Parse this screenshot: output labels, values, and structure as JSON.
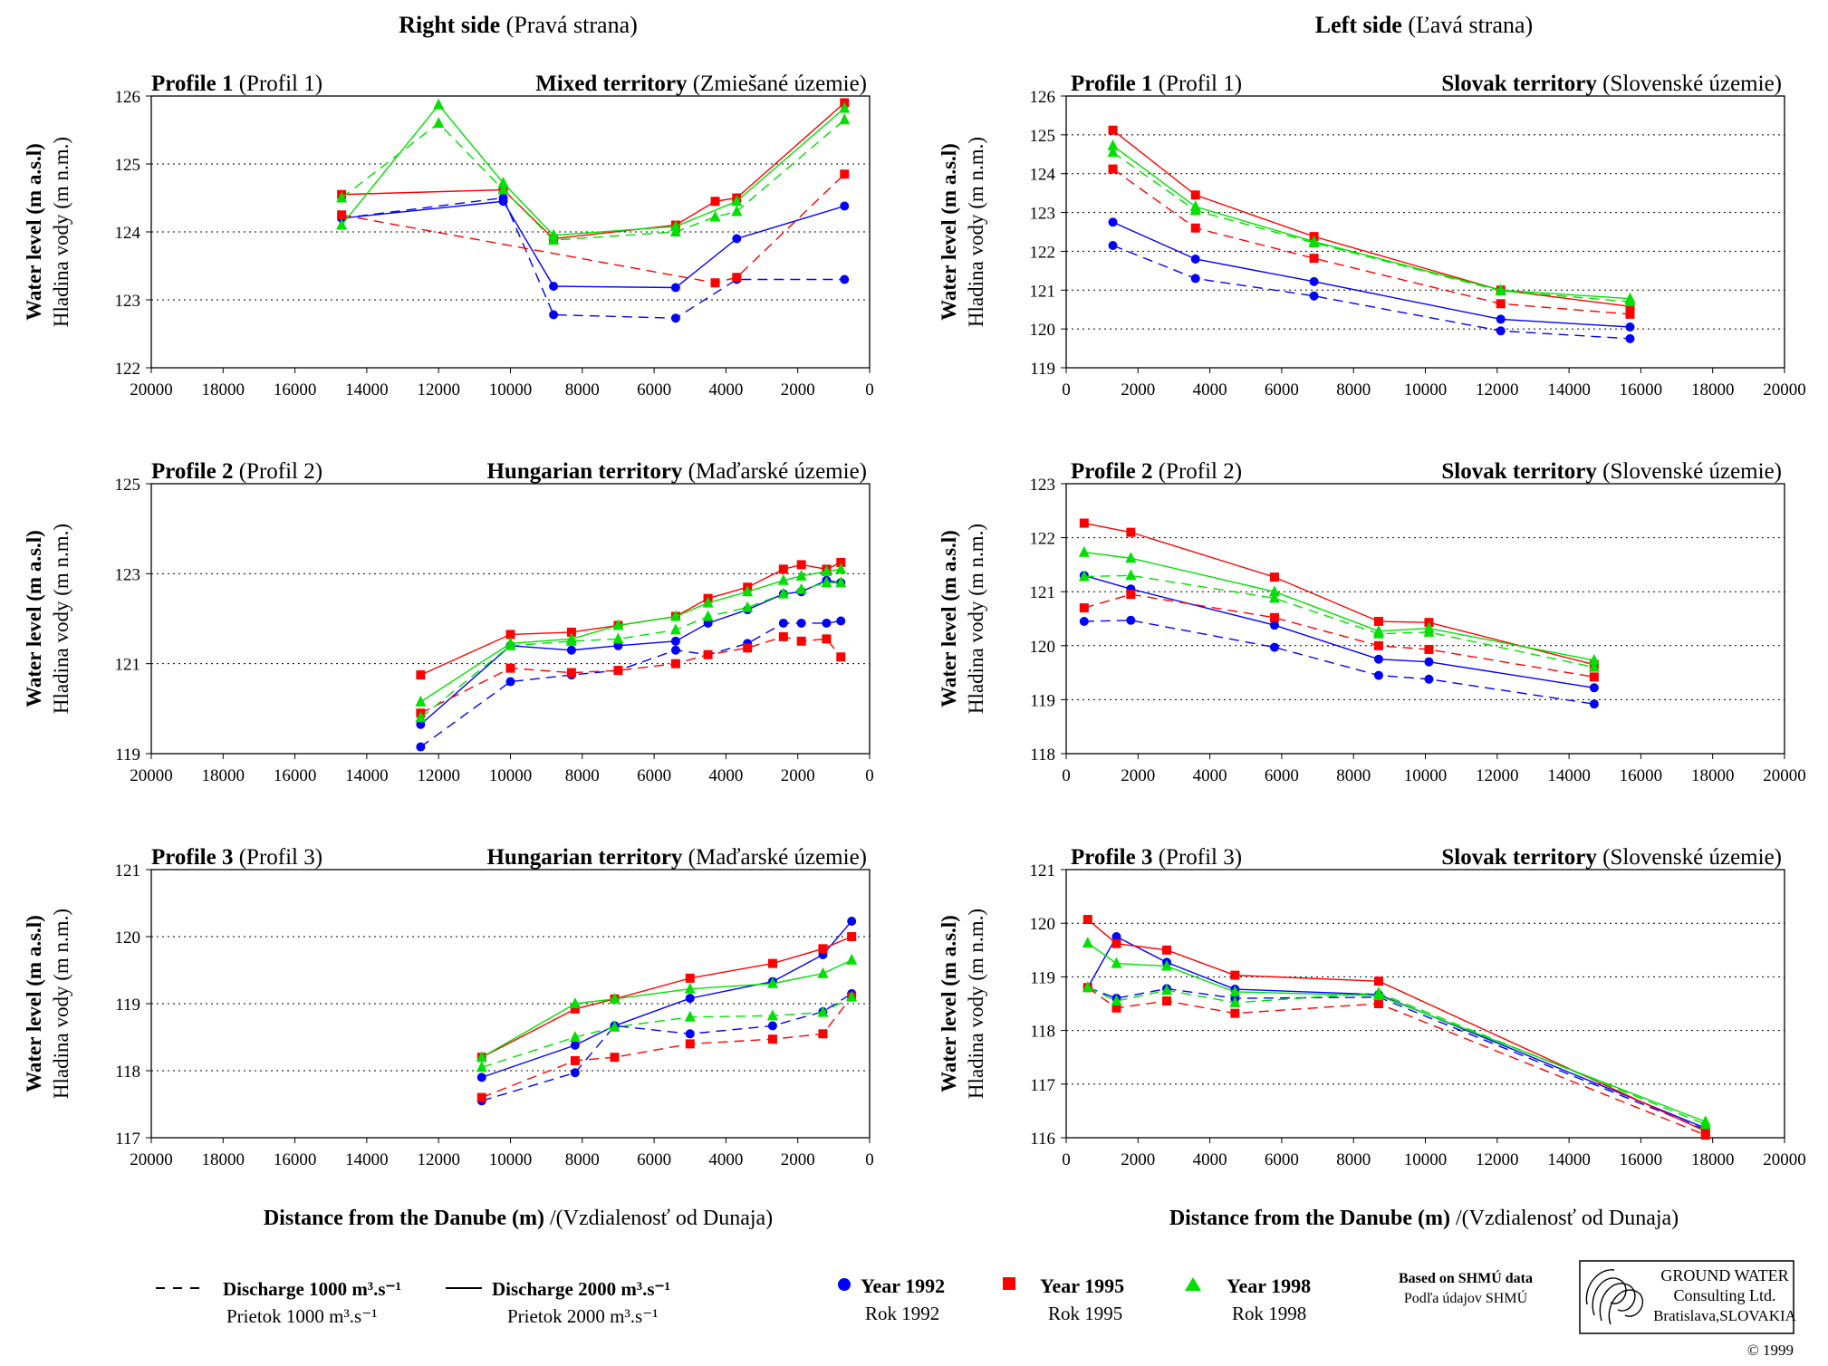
{
  "headings": {
    "right": {
      "bold": "Right side",
      "normal": " (Pravá strana)"
    },
    "left": {
      "bold": "Left side",
      "normal": " (Ľavá strana)"
    }
  },
  "y_label": {
    "en": "Water level (m a.s.l)",
    "sk": "Hladina vody  (m n.m.)"
  },
  "x_label": {
    "en": "Distance from the Danube (m)",
    "sk": " /(Vzdialenosť od Dunaja)"
  },
  "x_ticks": [
    0,
    2000,
    4000,
    6000,
    8000,
    10000,
    12000,
    14000,
    16000,
    18000,
    20000
  ],
  "colors": {
    "1992": "#0000ff",
    "1995": "#ff0000",
    "1998": "#00e000",
    "grid": "#000000"
  },
  "legend": {
    "dashed": {
      "label": "Discharge 1000 m³.s⁻¹",
      "sub": "Prietok      1000  m³.s⁻¹"
    },
    "solid": {
      "label": "Discharge 2000 m³.s⁻¹",
      "sub": "Prietok      2000  m³.s⁻¹"
    },
    "years": [
      {
        "year": "1992",
        "label": "Year 1992",
        "sub": "Rok  1992",
        "marker": "circle"
      },
      {
        "year": "1995",
        "label": "Year  1995",
        "sub": "Rok  1995",
        "marker": "square"
      },
      {
        "year": "1998",
        "label": "Year  1998",
        "sub": "Rok  1998",
        "marker": "triangle"
      }
    ]
  },
  "credit": {
    "line1": "Based on SHMÚ data",
    "line2": "Podľa údajov SHMÚ"
  },
  "logo": {
    "l1": "GROUND WATER",
    "l2": "Consulting Ltd.",
    "l3": "Bratislava,SLOVAKIA"
  },
  "copyright": "© 1999",
  "chart_data": [
    {
      "type": "line",
      "profile": "Profile 1",
      "profile_sk": " (Profil 1)",
      "territory": "Mixed territory",
      "territory_sk": " (Zmiešané územie)",
      "xlim": [
        20000,
        0
      ],
      "ylim": [
        122,
        126
      ],
      "yticks": [
        122,
        123,
        124,
        125,
        126
      ],
      "series": [
        {
          "year": "1992",
          "discharge": 2000,
          "x": [
            14700,
            10200,
            8800,
            5400,
            3700,
            700
          ],
          "y": [
            124.2,
            124.45,
            123.2,
            123.18,
            123.9,
            124.38
          ]
        },
        {
          "year": "1992",
          "discharge": 1000,
          "x": [
            14700,
            10200,
            8800,
            5400,
            3700,
            700
          ],
          "y": [
            124.2,
            124.5,
            122.78,
            122.73,
            123.3,
            123.3
          ]
        },
        {
          "year": "1995",
          "discharge": 2000,
          "x": [
            14700,
            10200,
            8800,
            5400,
            4300,
            3700,
            700
          ],
          "y": [
            124.55,
            124.62,
            123.9,
            124.1,
            124.45,
            124.5,
            125.9
          ]
        },
        {
          "year": "1995",
          "discharge": 1000,
          "x": [
            14700,
            4300,
            3700,
            700
          ],
          "y": [
            124.25,
            123.25,
            123.33,
            124.85
          ]
        },
        {
          "year": "1998",
          "discharge": 2000,
          "x": [
            14700,
            12000,
            10200,
            8800,
            5400,
            3700,
            700
          ],
          "y": [
            124.1,
            125.87,
            124.72,
            123.95,
            124.08,
            124.45,
            125.82
          ]
        },
        {
          "year": "1998",
          "discharge": 1000,
          "x": [
            14700,
            12000,
            10200,
            8800,
            5400,
            4300,
            3700,
            700
          ],
          "y": [
            124.5,
            125.6,
            124.62,
            123.88,
            124.0,
            124.22,
            124.3,
            125.65
          ]
        }
      ]
    },
    {
      "type": "line",
      "profile": "Profile 2",
      "profile_sk": " (Profil 2)",
      "territory": "Hungarian territory",
      "territory_sk": " (Maďarské územie)",
      "xlim": [
        20000,
        0
      ],
      "ylim": [
        119,
        125
      ],
      "yticks": [
        119,
        121,
        123,
        125
      ],
      "series": [
        {
          "year": "1992",
          "discharge": 2000,
          "x": [
            12500,
            10000,
            8300,
            7000,
            5400,
            4500,
            3400,
            2400,
            1900,
            1200,
            800
          ],
          "y": [
            119.65,
            121.4,
            121.3,
            121.4,
            121.5,
            121.9,
            122.2,
            122.55,
            122.6,
            122.85,
            122.8
          ]
        },
        {
          "year": "1992",
          "discharge": 1000,
          "x": [
            12500,
            10000,
            8300,
            7000,
            5400,
            4500,
            3400,
            2400,
            1900,
            1200,
            800
          ],
          "y": [
            119.15,
            120.6,
            120.75,
            120.85,
            121.3,
            121.2,
            121.45,
            121.9,
            121.9,
            121.9,
            121.95
          ]
        },
        {
          "year": "1995",
          "discharge": 2000,
          "x": [
            12500,
            10000,
            8300,
            7000,
            5400,
            4500,
            3400,
            2400,
            1900,
            1200,
            800
          ],
          "y": [
            120.75,
            121.65,
            121.7,
            121.85,
            122.05,
            122.45,
            122.7,
            123.1,
            123.2,
            123.1,
            123.25
          ]
        },
        {
          "year": "1995",
          "discharge": 1000,
          "x": [
            12500,
            10000,
            8300,
            7000,
            5400,
            4500,
            3400,
            2400,
            1900,
            1200,
            800
          ],
          "y": [
            119.9,
            120.9,
            120.8,
            120.85,
            121.0,
            121.2,
            121.35,
            121.6,
            121.5,
            121.55,
            121.15
          ]
        },
        {
          "year": "1998",
          "discharge": 2000,
          "x": [
            12500,
            10000,
            8300,
            7000,
            5400,
            4500,
            3400,
            2400,
            1900,
            1200,
            800
          ],
          "y": [
            120.15,
            121.45,
            121.55,
            121.85,
            122.05,
            122.35,
            122.6,
            122.85,
            122.95,
            123.05,
            123.1
          ]
        },
        {
          "year": "1998",
          "discharge": 1000,
          "x": [
            12500,
            10000,
            8300,
            7000,
            5400,
            4500,
            3400,
            2400,
            1900,
            1200,
            800
          ],
          "y": [
            119.8,
            121.4,
            121.5,
            121.55,
            121.75,
            122.05,
            122.25,
            122.55,
            122.65,
            122.8,
            122.8
          ]
        }
      ]
    },
    {
      "type": "line",
      "profile": "Profile 3",
      "profile_sk": " (Profil 3)",
      "territory": "Hungarian territory",
      "territory_sk": " (Maďarské územie)",
      "xlim": [
        20000,
        0
      ],
      "ylim": [
        117,
        121
      ],
      "yticks": [
        117,
        118,
        119,
        120,
        121
      ],
      "series": [
        {
          "year": "1992",
          "discharge": 2000,
          "x": [
            10800,
            8200,
            7100,
            5000,
            2700,
            1300,
            500
          ],
          "y": [
            117.9,
            118.38,
            118.67,
            119.08,
            119.33,
            119.73,
            120.23
          ]
        },
        {
          "year": "1992",
          "discharge": 1000,
          "x": [
            10800,
            8200,
            7100,
            5000,
            2700,
            1300,
            500
          ],
          "y": [
            117.55,
            117.97,
            118.67,
            118.55,
            118.67,
            118.88,
            119.15
          ]
        },
        {
          "year": "1995",
          "discharge": 2000,
          "x": [
            10800,
            8200,
            7100,
            5000,
            2700,
            1300,
            500
          ],
          "y": [
            118.2,
            118.92,
            119.07,
            119.38,
            119.6,
            119.82,
            120.0
          ]
        },
        {
          "year": "1995",
          "discharge": 1000,
          "x": [
            10800,
            8200,
            7100,
            5000,
            2700,
            1300,
            500
          ],
          "y": [
            117.6,
            118.15,
            118.2,
            118.4,
            118.47,
            118.55,
            119.1
          ]
        },
        {
          "year": "1998",
          "discharge": 2000,
          "x": [
            10800,
            8200,
            7100,
            5000,
            2700,
            1300,
            500
          ],
          "y": [
            118.2,
            119.0,
            119.07,
            119.22,
            119.3,
            119.45,
            119.65
          ]
        },
        {
          "year": "1998",
          "discharge": 1000,
          "x": [
            10800,
            8200,
            7100,
            5000,
            2700,
            1300,
            500
          ],
          "y": [
            118.05,
            118.5,
            118.65,
            118.8,
            118.82,
            118.87,
            119.1
          ]
        }
      ]
    },
    {
      "type": "line",
      "profile": "Profile 1",
      "profile_sk": " (Profil 1)",
      "territory": "Slovak territory",
      "territory_sk": " (Slovenské územie)",
      "xlim": [
        0,
        20000
      ],
      "ylim": [
        119,
        126
      ],
      "yticks": [
        119,
        120,
        121,
        122,
        123,
        124,
        125,
        126
      ],
      "series": [
        {
          "year": "1992",
          "discharge": 2000,
          "x": [
            1300,
            3600,
            6900,
            12100,
            15700
          ],
          "y": [
            122.75,
            121.8,
            121.22,
            120.25,
            120.05
          ]
        },
        {
          "year": "1992",
          "discharge": 1000,
          "x": [
            1300,
            3600,
            6900,
            12100,
            15700
          ],
          "y": [
            122.15,
            121.3,
            120.85,
            119.95,
            119.75
          ]
        },
        {
          "year": "1995",
          "discharge": 2000,
          "x": [
            1300,
            3600,
            6900,
            12100,
            15700
          ],
          "y": [
            125.12,
            123.45,
            122.38,
            121.0,
            120.58
          ]
        },
        {
          "year": "1995",
          "discharge": 1000,
          "x": [
            1300,
            3600,
            6900,
            12100,
            15700
          ],
          "y": [
            124.12,
            122.6,
            121.82,
            120.65,
            120.38
          ]
        },
        {
          "year": "1998",
          "discharge": 2000,
          "x": [
            1300,
            3600,
            6900,
            12100,
            15700
          ],
          "y": [
            124.72,
            123.15,
            122.25,
            121.0,
            120.78
          ]
        },
        {
          "year": "1998",
          "discharge": 1000,
          "x": [
            1300,
            3600,
            6900,
            12100,
            15700
          ],
          "y": [
            124.55,
            123.05,
            122.22,
            120.98,
            120.7
          ]
        }
      ]
    },
    {
      "type": "line",
      "profile": "Profile 2",
      "profile_sk": " (Profil 2)",
      "territory": "Slovak territory",
      "territory_sk": " (Slovenské územie)",
      "xlim": [
        0,
        20000
      ],
      "ylim": [
        118,
        123
      ],
      "yticks": [
        118,
        119,
        120,
        121,
        122,
        123
      ],
      "series": [
        {
          "year": "1992",
          "discharge": 2000,
          "x": [
            500,
            1800,
            5800,
            8700,
            10100,
            14700
          ],
          "y": [
            121.3,
            121.05,
            120.38,
            119.75,
            119.7,
            119.22
          ]
        },
        {
          "year": "1992",
          "discharge": 1000,
          "x": [
            500,
            1800,
            5800,
            8700,
            10100,
            14700
          ],
          "y": [
            120.45,
            120.47,
            119.97,
            119.45,
            119.38,
            118.92
          ]
        },
        {
          "year": "1995",
          "discharge": 2000,
          "x": [
            500,
            1800,
            5800,
            8700,
            10100,
            14700
          ],
          "y": [
            122.27,
            122.1,
            121.27,
            120.45,
            120.43,
            119.65
          ]
        },
        {
          "year": "1995",
          "discharge": 1000,
          "x": [
            500,
            1800,
            5800,
            8700,
            10100,
            14700
          ],
          "y": [
            120.7,
            120.95,
            120.52,
            120.0,
            119.93,
            119.42
          ]
        },
        {
          "year": "1998",
          "discharge": 2000,
          "x": [
            500,
            1800,
            5800,
            8700,
            10100,
            14700
          ],
          "y": [
            121.73,
            121.62,
            121.0,
            120.27,
            120.32,
            119.73
          ]
        },
        {
          "year": "1998",
          "discharge": 1000,
          "x": [
            500,
            1800,
            5800,
            8700,
            10100,
            14700
          ],
          "y": [
            121.28,
            121.3,
            120.88,
            120.22,
            120.25,
            119.6
          ]
        }
      ]
    },
    {
      "type": "line",
      "profile": "Profile 3",
      "profile_sk": " (Profil 3)",
      "territory": "Slovak territory",
      "territory_sk": " (Slovenské územie)",
      "xlim": [
        0,
        20000
      ],
      "ylim": [
        116,
        121
      ],
      "yticks": [
        116,
        117,
        118,
        119,
        120,
        121
      ],
      "series": [
        {
          "year": "1992",
          "discharge": 2000,
          "x": [
            600,
            1400,
            2800,
            4700,
            8700,
            17800
          ],
          "y": [
            118.8,
            119.75,
            119.27,
            118.77,
            118.67,
            116.18
          ]
        },
        {
          "year": "1992",
          "discharge": 1000,
          "x": [
            600,
            1400,
            2800,
            4700,
            8700,
            17800
          ],
          "y": [
            118.8,
            118.6,
            118.78,
            118.6,
            118.62,
            116.15
          ]
        },
        {
          "year": "1995",
          "discharge": 2000,
          "x": [
            600,
            1400,
            2800,
            4700,
            8700,
            17800
          ],
          "y": [
            120.07,
            119.62,
            119.5,
            119.03,
            118.92,
            116.12
          ]
        },
        {
          "year": "1995",
          "discharge": 1000,
          "x": [
            600,
            1400,
            2800,
            4700,
            8700,
            17800
          ],
          "y": [
            118.8,
            118.42,
            118.55,
            118.32,
            118.5,
            116.05
          ]
        },
        {
          "year": "1998",
          "discharge": 2000,
          "x": [
            600,
            1400,
            2800,
            4700,
            8700,
            17800
          ],
          "y": [
            119.63,
            119.25,
            119.2,
            118.72,
            118.65,
            116.3
          ]
        },
        {
          "year": "1998",
          "discharge": 1000,
          "x": [
            600,
            1400,
            2800,
            4700,
            8700,
            17800
          ],
          "y": [
            118.8,
            118.55,
            118.75,
            118.52,
            118.7,
            116.25
          ]
        }
      ]
    }
  ]
}
